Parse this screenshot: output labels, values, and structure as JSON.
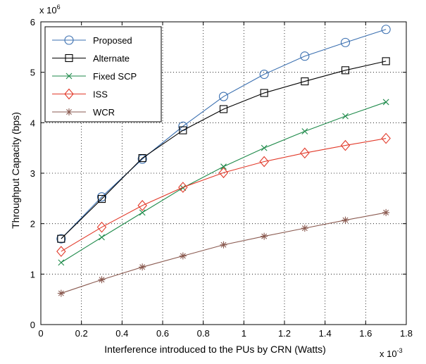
{
  "chart_data": {
    "type": "line",
    "title": "",
    "xlabel": "Interference introduced to the PUs by CRN (Watts)",
    "ylabel": "Throughput Capacity (bps)",
    "x_multiplier": {
      "base": "x 10",
      "exp": "-3"
    },
    "y_multiplier": {
      "base": "x 10",
      "exp": "6"
    },
    "xlim": [
      0,
      1.8
    ],
    "ylim": [
      0,
      6
    ],
    "xticks": [
      "0",
      "0.2",
      "0.4",
      "0.6",
      "0.8",
      "1",
      "1.2",
      "1.4",
      "1.6",
      "1.8"
    ],
    "yticks": [
      "0",
      "1",
      "2",
      "3",
      "4",
      "5",
      "6"
    ],
    "grid": true,
    "grid_style": "dotted",
    "legend_position": "top-left",
    "x": [
      0.1,
      0.3,
      0.5,
      0.7,
      0.9,
      1.1,
      1.3,
      1.5,
      1.7
    ],
    "series": [
      {
        "name": "Proposed",
        "color": "#3a6fb0",
        "marker": "circle",
        "values": [
          1.7,
          2.53,
          3.28,
          3.93,
          4.52,
          4.96,
          5.32,
          5.59,
          5.85
        ]
      },
      {
        "name": "Alternate",
        "color": "#000000",
        "marker": "square",
        "values": [
          1.7,
          2.49,
          3.3,
          3.85,
          4.27,
          4.59,
          4.82,
          5.04,
          5.22
        ]
      },
      {
        "name": "Fixed SCP",
        "color": "#1e8a4a",
        "marker": "x",
        "values": [
          1.23,
          1.73,
          2.22,
          2.71,
          3.13,
          3.5,
          3.83,
          4.13,
          4.41
        ]
      },
      {
        "name": "ISS",
        "color": "#e23a2a",
        "marker": "diamond",
        "values": [
          1.45,
          1.93,
          2.36,
          2.72,
          3.01,
          3.23,
          3.4,
          3.55,
          3.69
        ]
      },
      {
        "name": "WCR",
        "color": "#8a5a50",
        "marker": "star",
        "values": [
          0.62,
          0.89,
          1.14,
          1.36,
          1.58,
          1.75,
          1.91,
          2.07,
          2.22
        ]
      }
    ]
  }
}
